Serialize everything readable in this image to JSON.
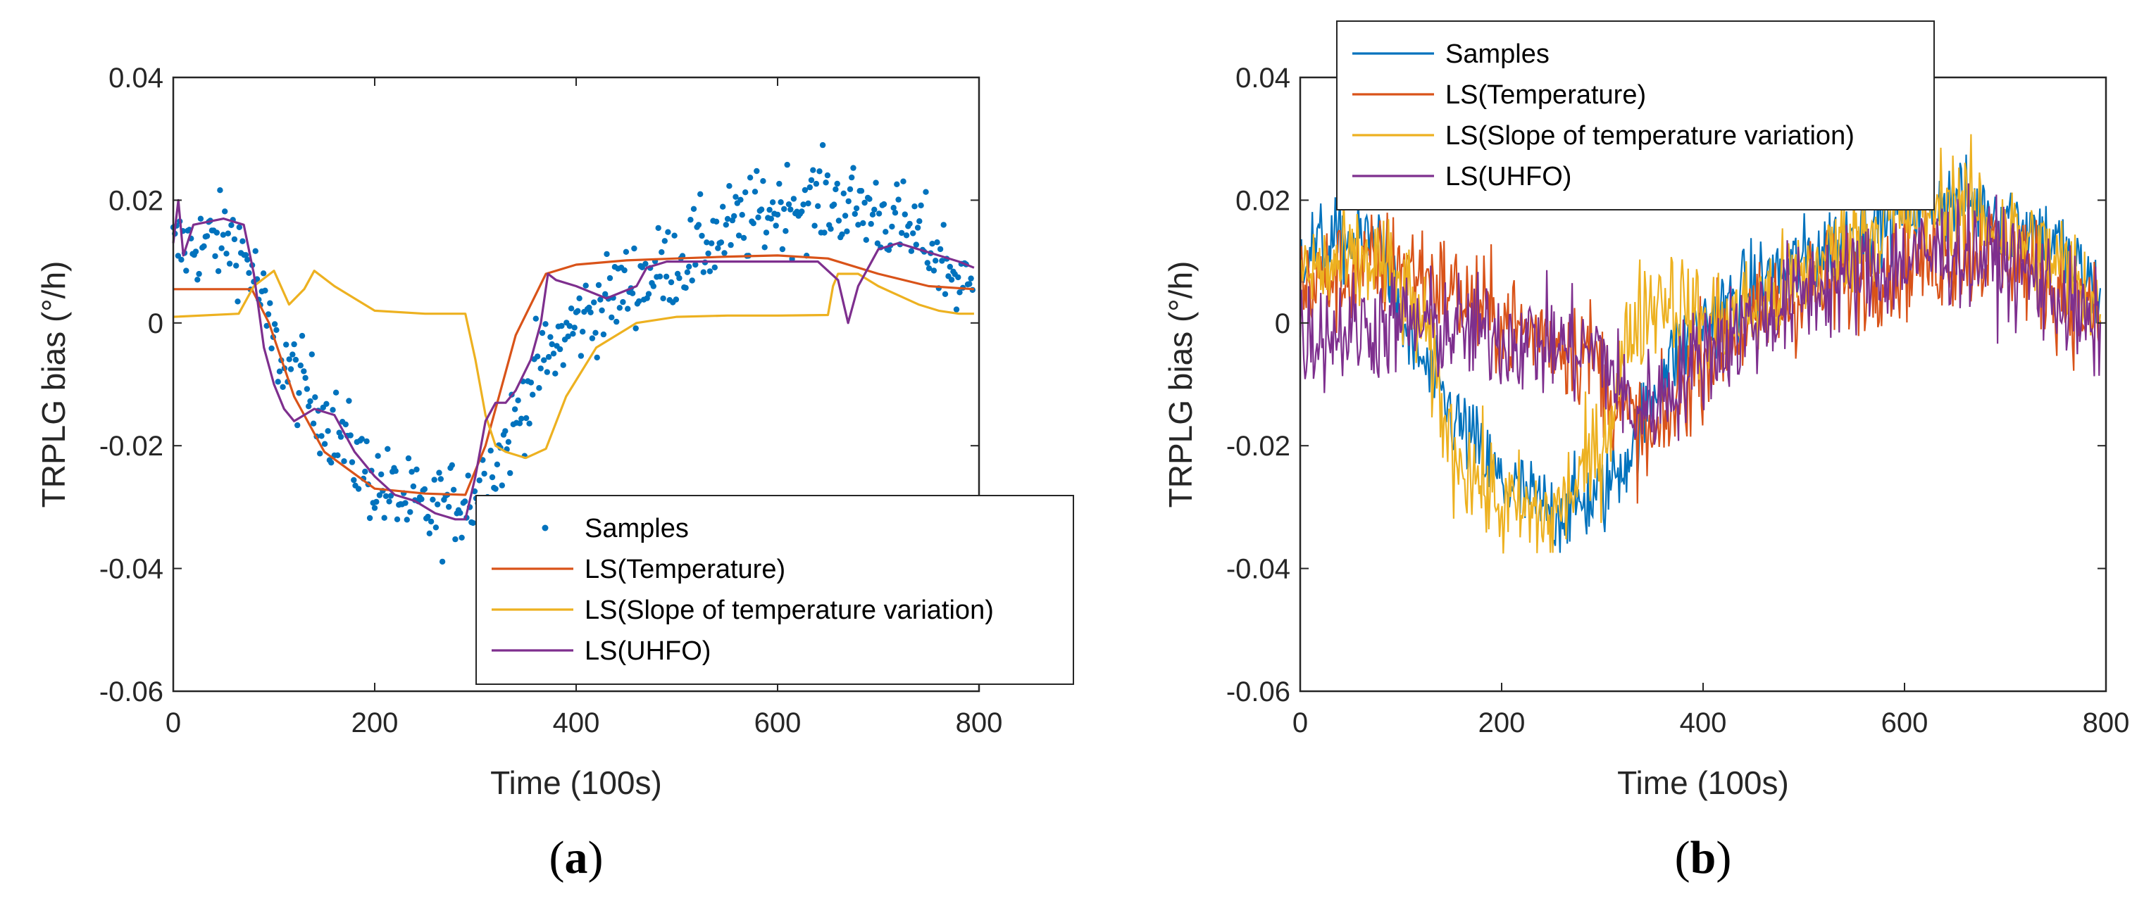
{
  "colors": {
    "samples": "#0072BD",
    "temperature": "#D95319",
    "slope": "#EDB120",
    "uhfo": "#7E2F8E",
    "axis": "#262626"
  },
  "chart_data": [
    {
      "type": "line",
      "panel": "a",
      "panel_label": "(a)",
      "xlabel": "Time (100s)",
      "ylabel": "TRPLG bias (°/h)",
      "xlim": [
        0,
        800
      ],
      "ylim": [
        -0.06,
        0.04
      ],
      "xticks": [
        "0",
        "200",
        "400",
        "600",
        "800"
      ],
      "yticks": [
        "-0.06",
        "-0.04",
        "-0.02",
        "0",
        "0.02",
        "0.04"
      ],
      "legend_position": "bottom-right",
      "legend": [
        "Samples",
        "LS(Temperature)",
        "LS(Slope of temperature variation)",
        "LS(UHFO)"
      ],
      "series": [
        {
          "name": "Samples",
          "style": "markers",
          "description": "noisy scatter around the underlying bias trend, 1 point per time step 0-795",
          "trend_x": [
            0,
            60,
            80,
            100,
            150,
            200,
            250,
            300,
            330,
            360,
            400,
            450,
            500,
            550,
            600,
            650,
            700,
            750,
            795
          ],
          "trend_y": [
            0.012,
            0.014,
            0.008,
            -0.004,
            -0.015,
            -0.026,
            -0.031,
            -0.028,
            -0.02,
            -0.008,
            0.0,
            0.006,
            0.01,
            0.015,
            0.019,
            0.02,
            0.018,
            0.013,
            0.004
          ],
          "noise": 0.007
        },
        {
          "name": "LS(Temperature)",
          "style": "line",
          "x": [
            0,
            78,
            95,
            120,
            150,
            200,
            250,
            290,
            310,
            340,
            370,
            400,
            450,
            500,
            550,
            600,
            650,
            700,
            750,
            795
          ],
          "y": [
            0.0055,
            0.0055,
            0.0,
            -0.012,
            -0.021,
            -0.027,
            -0.0278,
            -0.028,
            -0.02,
            -0.002,
            0.008,
            0.0095,
            0.0102,
            0.0105,
            0.0108,
            0.011,
            0.0105,
            0.008,
            0.006,
            0.0055
          ]
        },
        {
          "name": "LS(Slope of temperature variation)",
          "style": "line",
          "x": [
            0,
            65,
            80,
            100,
            115,
            130,
            140,
            160,
            200,
            250,
            290,
            300,
            310,
            320,
            330,
            350,
            370,
            390,
            420,
            460,
            500,
            550,
            600,
            650,
            655,
            660,
            680,
            700,
            720,
            740,
            760,
            780,
            795
          ],
          "y": [
            0.001,
            0.0015,
            0.006,
            0.0085,
            0.003,
            0.0055,
            0.0085,
            0.006,
            0.002,
            0.0015,
            0.0015,
            -0.006,
            -0.015,
            -0.02,
            -0.021,
            -0.022,
            -0.0205,
            -0.012,
            -0.004,
            0.0,
            0.001,
            0.0012,
            0.0012,
            0.0013,
            0.006,
            0.008,
            0.008,
            0.006,
            0.0045,
            0.003,
            0.002,
            0.0015,
            0.0015
          ]
        },
        {
          "name": "LS(UHFO)",
          "style": "line",
          "x": [
            0,
            5,
            10,
            20,
            50,
            70,
            80,
            90,
            100,
            110,
            120,
            130,
            140,
            160,
            180,
            200,
            220,
            240,
            260,
            280,
            290,
            300,
            310,
            320,
            330,
            340,
            355,
            365,
            372,
            380,
            400,
            430,
            460,
            470,
            490,
            520,
            560,
            600,
            640,
            660,
            670,
            680,
            700,
            720,
            740,
            760,
            780,
            795
          ],
          "y": [
            0.013,
            0.02,
            0.011,
            0.016,
            0.017,
            0.016,
            0.008,
            -0.004,
            -0.01,
            -0.014,
            -0.016,
            -0.015,
            -0.014,
            -0.015,
            -0.021,
            -0.025,
            -0.028,
            -0.029,
            -0.031,
            -0.032,
            -0.032,
            -0.025,
            -0.016,
            -0.013,
            -0.013,
            -0.011,
            -0.006,
            0.0,
            0.008,
            0.007,
            0.006,
            0.004,
            0.006,
            0.009,
            0.01,
            0.01,
            0.01,
            0.01,
            0.01,
            0.007,
            0.0,
            0.006,
            0.012,
            0.013,
            0.012,
            0.011,
            0.01,
            0.009
          ]
        }
      ]
    },
    {
      "type": "line",
      "panel": "b",
      "panel_label": "(b)",
      "xlabel": "Time (100s)",
      "ylabel": "TRPLG bias (°/h)",
      "xlim": [
        0,
        800
      ],
      "ylim": [
        -0.06,
        0.04
      ],
      "xticks": [
        "0",
        "200",
        "400",
        "600",
        "800"
      ],
      "yticks": [
        "-0.06",
        "-0.04",
        "-0.02",
        "0",
        "0.02",
        "0.04"
      ],
      "legend_position": "top-left",
      "legend": [
        "Samples",
        "LS(Temperature)",
        "LS(Slope of temperature variation)",
        "LS(UHFO)"
      ],
      "series": [
        {
          "name": "Samples",
          "style": "noisy-line",
          "trend_x": [
            0,
            80,
            100,
            150,
            200,
            250,
            300,
            330,
            360,
            400,
            450,
            500,
            550,
            600,
            650,
            700,
            750,
            795
          ],
          "trend_y": [
            0.012,
            0.014,
            0.0,
            -0.015,
            -0.026,
            -0.031,
            -0.028,
            -0.02,
            -0.008,
            0.0,
            0.006,
            0.01,
            0.015,
            0.019,
            0.02,
            0.018,
            0.013,
            0.004
          ],
          "noise": 0.007
        },
        {
          "name": "LS(Temperature)",
          "style": "noisy-line",
          "trend_x": [
            0,
            100,
            200,
            290,
            320,
            350,
            400,
            500,
            600,
            700,
            795
          ],
          "trend_y": [
            0.006,
            0.01,
            0.0,
            -0.005,
            -0.015,
            -0.02,
            -0.005,
            0.005,
            0.01,
            0.012,
            0.0
          ],
          "noise": 0.009
        },
        {
          "name": "LS(Slope of temperature variation)",
          "style": "noisy-line",
          "trend_x": [
            0,
            80,
            120,
            150,
            200,
            250,
            300,
            330,
            360,
            400,
            450,
            500,
            550,
            600,
            650,
            700,
            750,
            795
          ],
          "trend_y": [
            0.008,
            0.01,
            0.0,
            -0.02,
            -0.03,
            -0.032,
            -0.02,
            0.0,
            0.005,
            0.0,
            0.002,
            0.008,
            0.014,
            0.018,
            0.02,
            0.015,
            0.01,
            0.003
          ],
          "noise": 0.009
        },
        {
          "name": "LS(UHFO)",
          "style": "noisy-line",
          "trend_x": [
            0,
            100,
            200,
            300,
            330,
            360,
            400,
            500,
            600,
            650,
            700,
            750,
            795
          ],
          "trend_y": [
            -0.002,
            0.0,
            -0.002,
            -0.005,
            -0.015,
            -0.012,
            -0.005,
            0.005,
            0.01,
            0.012,
            0.01,
            0.005,
            -0.003
          ],
          "noise": 0.009
        }
      ]
    }
  ]
}
